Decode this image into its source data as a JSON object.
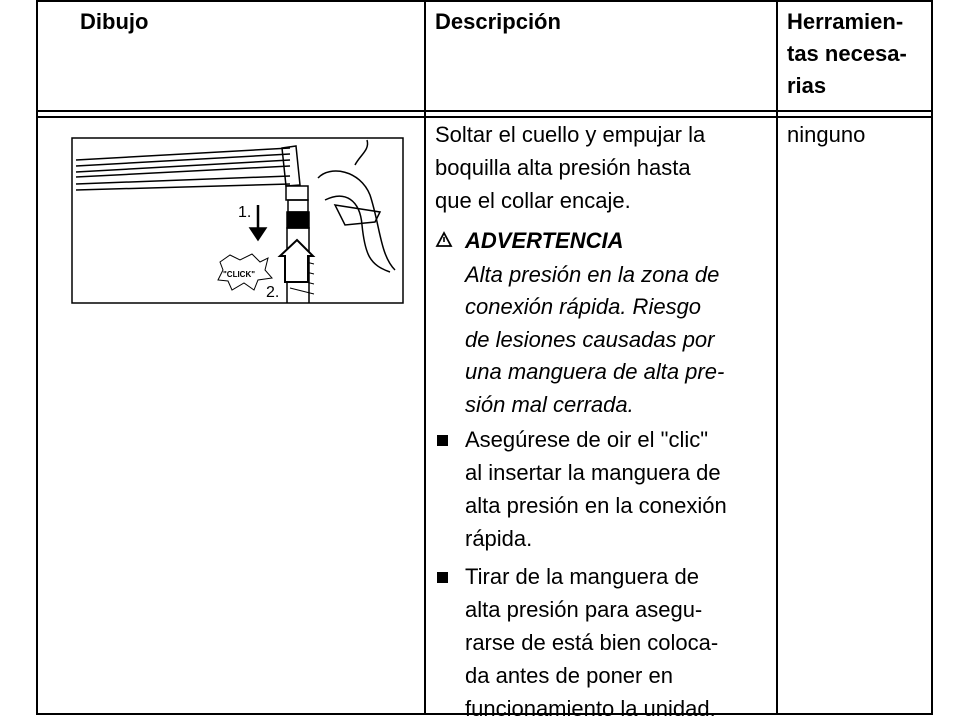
{
  "table": {
    "header": [
      [
        "Dibujo"
      ],
      [
        "Descripción"
      ],
      [
        "Herramien-",
        "tas necesa-",
        "rias"
      ]
    ],
    "rows": [
      {
        "drawing_labels": [
          "1.",
          "2.",
          "\"CLICK\""
        ],
        "description": {
          "intro": [
            "Soltar el cuello y empujar la",
            "boquilla alta presión hasta",
            "que el collar encaje."
          ],
          "warning": {
            "title": "ADVERTENCIA",
            "text": [
              "Alta presión en la zona de",
              "conexión rápida. Riesgo",
              "de lesiones causadas por",
              "una manguera de alta pre-",
              "sión mal cerrada."
            ]
          },
          "bullets": [
            [
              "Asegúrese de oir el \"clic\"",
              "al insertar la manguera de",
              "alta presión en la conexión",
              "rápida."
            ],
            [
              "Tirar de la manguera de",
              "alta presión para asegu-",
              "rarse de está bien coloca-",
              "da antes de poner en",
              "funcionamiento la unidad."
            ]
          ]
        },
        "tools": [
          "ninguno"
        ]
      }
    ]
  }
}
